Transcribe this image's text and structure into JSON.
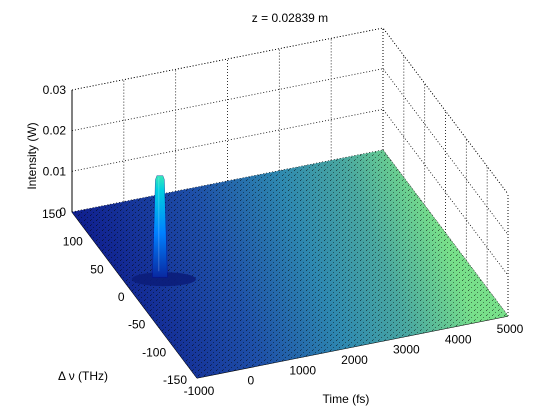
{
  "chart_data": {
    "type": "surface",
    "title": "z = 0.02839 m",
    "xlabel": "Time (fs)",
    "ylabel": "Δ ν (THz)",
    "zlabel": "Intensity (W)",
    "x_ticks": [
      "-1000",
      "0",
      "1000",
      "2000",
      "3000",
      "4000",
      "5000"
    ],
    "y_ticks": [
      "-150",
      "-100",
      "-50",
      "0",
      "50",
      "100",
      "150"
    ],
    "z_ticks": [
      "0",
      "0.01",
      "0.02",
      "0.03"
    ],
    "xlim": [
      -1000,
      5000
    ],
    "ylim": [
      -150,
      150
    ],
    "zlim": [
      0,
      0.03
    ],
    "peak": {
      "time_fs": -350,
      "delta_nu_THz": 20,
      "intensity_W": 0.025
    },
    "grid": true,
    "colormap": [
      "#00008f",
      "#0050ff",
      "#00c8ff",
      "#80ff80",
      "#ffd000",
      "#ff4000",
      "#800000"
    ]
  }
}
